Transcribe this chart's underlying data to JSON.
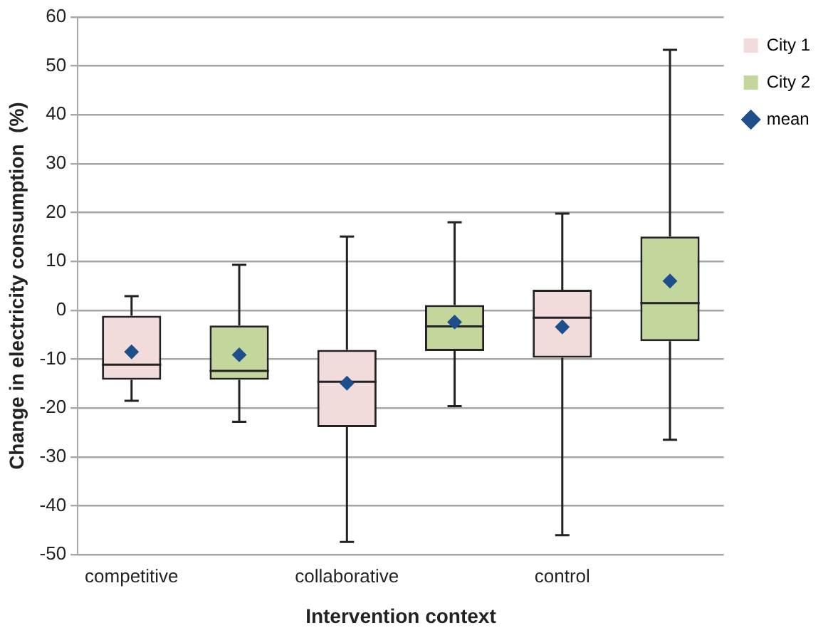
{
  "chart_data": {
    "type": "box",
    "xlabel": "Intervention context",
    "ylabel": "Change in electricity consumption  (%)",
    "categories": [
      "competitive",
      null,
      "collaborative",
      null,
      "control",
      null
    ],
    "series": [
      {
        "name": "City 1",
        "color": "#f2dcdb",
        "boxes": [
          {
            "low": -18.5,
            "q1": -14.2,
            "median": -11.1,
            "q3": -1.1,
            "high": 2.9
          },
          null,
          {
            "low": -47.4,
            "q1": -23.9,
            "median": -14.6,
            "q3": -8.1,
            "high": 15.1
          },
          null,
          {
            "low": -46.0,
            "q1": -9.7,
            "median": -1.5,
            "q3": 4.2,
            "high": 19.8
          },
          null
        ]
      },
      {
        "name": "City 2",
        "color": "#c3d69b",
        "boxes": [
          null,
          {
            "low": -22.8,
            "q1": -14.2,
            "median": -12.4,
            "q3": -3.1,
            "high": 9.3
          },
          null,
          {
            "low": -19.6,
            "q1": -8.3,
            "median": -3.3,
            "q3": 1.1,
            "high": 18.0
          },
          null,
          {
            "low": -26.5,
            "q1": -6.3,
            "median": 1.5,
            "q3": 15.1,
            "high": 53.3
          }
        ]
      },
      {
        "name": "mean",
        "type": "scatter",
        "color": "#1f4e8c",
        "marker": "diamond",
        "values": [
          -8.5,
          -9.1,
          -14.9,
          -2.4,
          -3.4,
          6.0
        ]
      }
    ],
    "ylim": [
      -50,
      60
    ],
    "yticks": [
      -50,
      -40,
      -30,
      -20,
      -10,
      0,
      10,
      20,
      30,
      40,
      50,
      60
    ],
    "grid": "y",
    "legend": "top right"
  }
}
